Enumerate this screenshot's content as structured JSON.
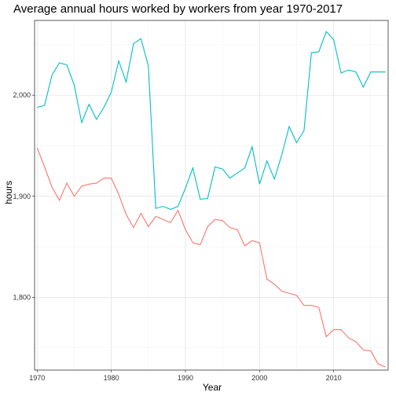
{
  "chart_data": {
    "type": "line",
    "title": "Average annual hours worked by workers from year 1970-2017",
    "xlabel": "Year",
    "ylabel": "hours",
    "xlim": [
      1969.65,
      2017.35
    ],
    "ylim": [
      1728,
      2074
    ],
    "x_ticks": [
      1970,
      1980,
      1990,
      2000,
      2010
    ],
    "x_tick_labels": [
      "1970",
      "1980",
      "1990",
      "2000",
      "2010"
    ],
    "y_ticks": [
      1800,
      1900,
      2000
    ],
    "y_tick_labels": [
      "1,800",
      "1,900",
      "2,000"
    ],
    "grid": true,
    "legend": "none",
    "series": [
      {
        "color": "#F8766D",
        "x": [
          1970,
          1971,
          1972,
          1973,
          1974,
          1975,
          1976,
          1977,
          1978,
          1979,
          1980,
          1981,
          1982,
          1983,
          1984,
          1985,
          1986,
          1987,
          1988,
          1989,
          1990,
          1991,
          1992,
          1993,
          1994,
          1995,
          1996,
          1997,
          1998,
          1999,
          2000,
          2001,
          2002,
          2003,
          2004,
          2005,
          2006,
          2007,
          2008,
          2009,
          2010,
          2011,
          2012,
          2013,
          2014,
          2015,
          2016,
          2017
        ],
        "values": [
          1948,
          1929,
          1909,
          1896,
          1913,
          1900,
          1910,
          1912,
          1913,
          1918,
          1918,
          1902,
          1882,
          1869,
          1883,
          1870,
          1880,
          1877,
          1874,
          1886,
          1867,
          1854,
          1852,
          1870,
          1877,
          1876,
          1869,
          1867,
          1851,
          1856,
          1854,
          1818,
          1813,
          1806,
          1804,
          1802,
          1792,
          1792,
          1790,
          1761,
          1768,
          1768,
          1760,
          1756,
          1748,
          1747,
          1734,
          1731
        ]
      },
      {
        "color": "#00BFC4",
        "x": [
          1970,
          1971,
          1972,
          1973,
          1974,
          1975,
          1976,
          1977,
          1978,
          1979,
          1980,
          1981,
          1982,
          1983,
          1984,
          1985,
          1986,
          1987,
          1988,
          1989,
          1990,
          1991,
          1992,
          1993,
          1994,
          1995,
          1996,
          1997,
          1998,
          1999,
          2000,
          2001,
          2002,
          2003,
          2004,
          2005,
          2006,
          2007,
          2008,
          2009,
          2010,
          2011,
          2012,
          2013,
          2014,
          2015,
          2016,
          2017
        ],
        "values": [
          1988,
          1990,
          2020,
          2032,
          2030,
          2010,
          1973,
          1991,
          1976,
          1988,
          2003,
          2034,
          2013,
          2051,
          2056,
          2029,
          1888,
          1890,
          1887,
          1890,
          1908,
          1928,
          1897,
          1898,
          1929,
          1927,
          1918,
          1923,
          1928,
          1949,
          1912,
          1935,
          1917,
          1941,
          1969,
          1953,
          1965,
          2042,
          2043,
          2063,
          2055,
          2022,
          2025,
          2023,
          2008,
          2023,
          2023,
          2023
        ]
      }
    ]
  }
}
